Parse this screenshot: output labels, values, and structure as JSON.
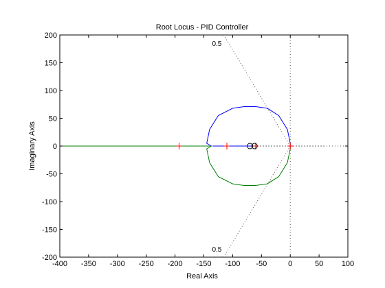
{
  "chart_data": {
    "type": "line",
    "title": "Root Locus  - PID Controller",
    "xlabel": "Real Axis",
    "ylabel": "Imaginary Axis",
    "xlim": [
      -400,
      100
    ],
    "ylim": [
      -200,
      200
    ],
    "xticks": [
      -400,
      -350,
      -300,
      -250,
      -200,
      -150,
      -100,
      -50,
      0,
      50,
      100
    ],
    "yticks": [
      -200,
      -150,
      -100,
      -50,
      0,
      50,
      100,
      150,
      200
    ],
    "grid": false,
    "colors": {
      "branch_upper": "#0000ff",
      "branch_lower": "#008000",
      "poles": "#ff0000",
      "zeros": "#000000",
      "damping_grid": "#555555",
      "axes": "#000000"
    },
    "series": [
      {
        "points": [
          [
            -138,
            0
          ],
          [
            -142,
            0
          ],
          [
            -150,
            0
          ],
          [
            -200,
            0
          ],
          [
            -300,
            0
          ],
          [
            -400,
            0
          ]
        ]
      },
      {
        "points": [
          [
            -137,
            0
          ],
          [
            -145,
            5
          ],
          [
            -140,
            30
          ],
          [
            -125,
            55
          ],
          [
            -100,
            68
          ],
          [
            -80,
            71
          ],
          [
            -60,
            71
          ],
          [
            -40,
            68
          ],
          [
            -20,
            55
          ],
          [
            -5,
            30
          ],
          [
            0,
            5
          ],
          [
            0,
            0
          ]
        ]
      },
      {
        "points": [
          [
            -137,
            0
          ],
          [
            -145,
            -5
          ],
          [
            -140,
            -30
          ],
          [
            -125,
            -55
          ],
          [
            -100,
            -68
          ],
          [
            -80,
            -71
          ],
          [
            -60,
            -71
          ],
          [
            -40,
            -68
          ],
          [
            -20,
            -55
          ],
          [
            -5,
            -30
          ],
          [
            0,
            -5
          ],
          [
            0,
            0
          ]
        ]
      },
      {
        "points": [
          [
            -135,
            0
          ],
          [
            -110,
            0
          ],
          [
            -75,
            0
          ],
          [
            -65,
            0
          ]
        ]
      },
      {
        "points": [
          [
            -62,
            0
          ],
          [
            -55,
            0
          ],
          [
            -30,
            0
          ],
          [
            0,
            0
          ],
          [
            60,
            0
          ]
        ]
      }
    ],
    "poles": [
      [
        -193,
        0
      ],
      [
        -110,
        0
      ],
      [
        -60,
        0
      ],
      [
        0,
        0
      ]
    ],
    "zeros": [
      [
        -70,
        0
      ],
      [
        -62,
        0
      ]
    ],
    "damping_line": {
      "zeta": 0.5
    },
    "damping_labels": [
      "0.5",
      "0.5"
    ]
  }
}
